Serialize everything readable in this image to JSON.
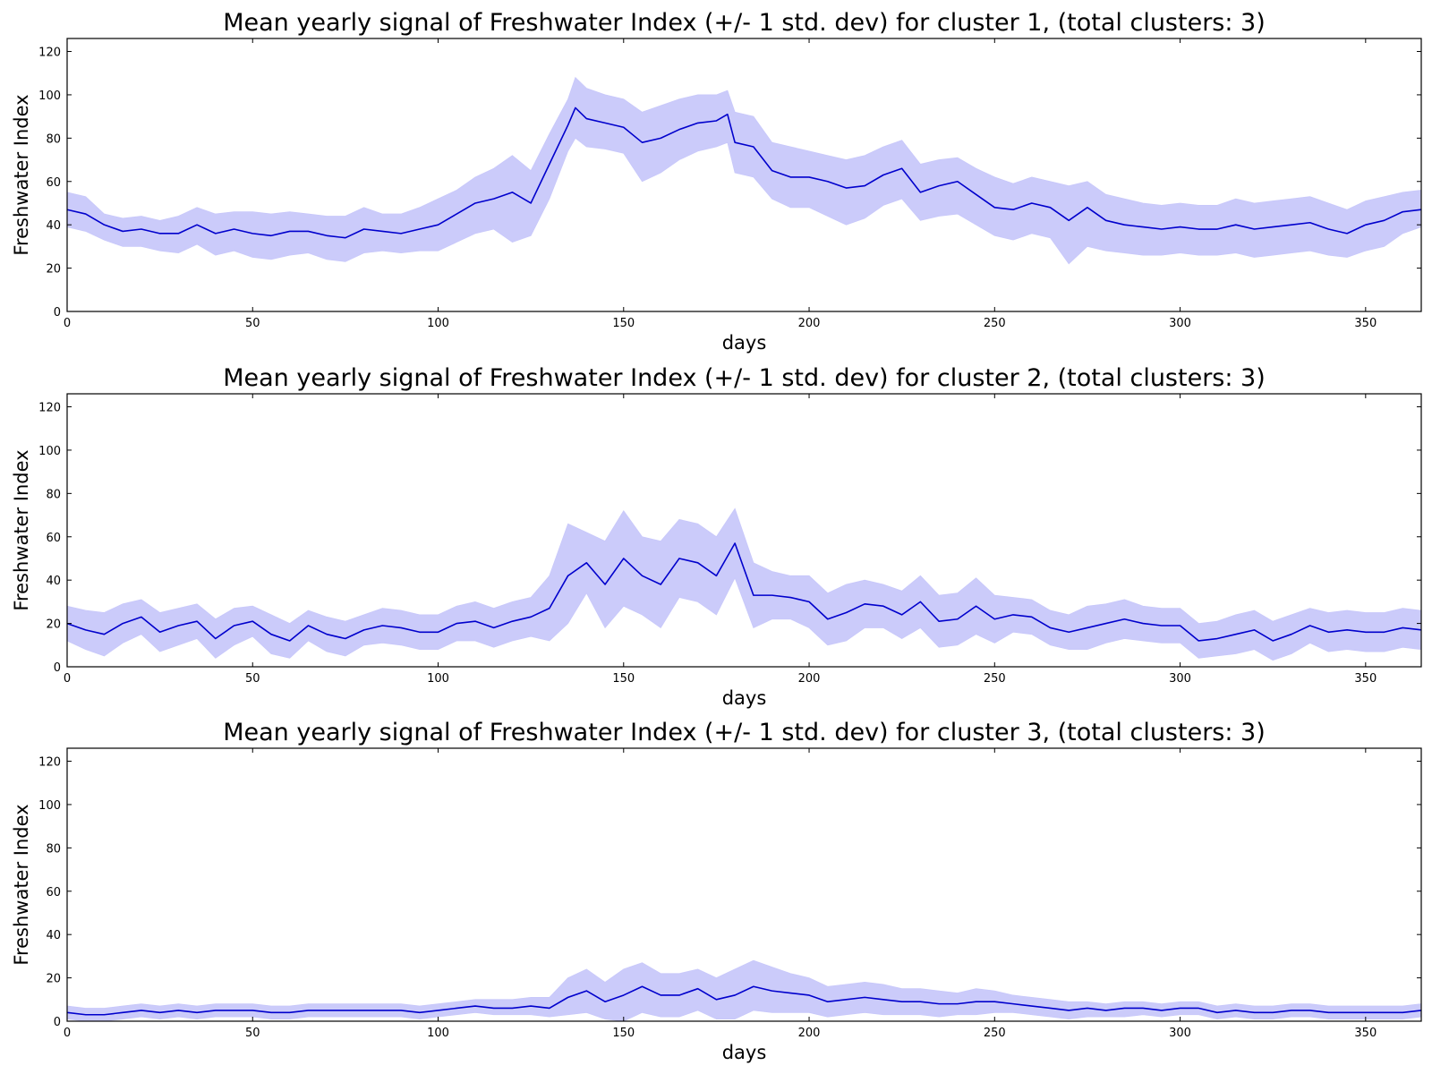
{
  "chart_data": [
    {
      "type": "line",
      "title": "Mean yearly signal of Freshwater Index (+/- 1 std. dev) for cluster 1, (total clusters: 3)",
      "xlabel": "days",
      "ylabel": "Freshwater Index",
      "xlim": [
        0,
        365
      ],
      "ylim": [
        0,
        126
      ],
      "xticks": [
        0,
        50,
        100,
        150,
        200,
        250,
        300,
        350
      ],
      "yticks": [
        0,
        20,
        40,
        60,
        80,
        100,
        120
      ],
      "grid": false,
      "colors": {
        "line": "#0000cc",
        "band": "#c8c8fa"
      },
      "x": [
        0,
        5,
        10,
        15,
        20,
        25,
        30,
        35,
        40,
        45,
        50,
        55,
        60,
        65,
        70,
        75,
        80,
        85,
        90,
        95,
        100,
        105,
        110,
        115,
        120,
        125,
        130,
        135,
        137,
        140,
        145,
        150,
        155,
        160,
        165,
        170,
        175,
        178,
        180,
        185,
        190,
        195,
        200,
        205,
        210,
        215,
        220,
        225,
        230,
        235,
        240,
        245,
        250,
        255,
        260,
        265,
        270,
        275,
        280,
        285,
        290,
        295,
        300,
        305,
        310,
        315,
        320,
        325,
        330,
        335,
        340,
        345,
        350,
        355,
        360,
        365
      ],
      "series": [
        {
          "mean": [
            47,
            45,
            40,
            37,
            38,
            36,
            36,
            40,
            36,
            38,
            36,
            35,
            37,
            37,
            35,
            34,
            38,
            37,
            36,
            38,
            40,
            45,
            50,
            52,
            55,
            50,
            68,
            86,
            94,
            89,
            87,
            85,
            78,
            80,
            84,
            87,
            88,
            91,
            78,
            76,
            65,
            62,
            62,
            60,
            57,
            58,
            63,
            66,
            55,
            58,
            60,
            54,
            48,
            47,
            50,
            48,
            42,
            48,
            42,
            40,
            39,
            38,
            39,
            38,
            38,
            40,
            38,
            39,
            40,
            41,
            38,
            36,
            40,
            42,
            46,
            47
          ],
          "upper": [
            55,
            53,
            45,
            43,
            44,
            42,
            44,
            48,
            45,
            46,
            46,
            45,
            46,
            45,
            44,
            44,
            48,
            45,
            45,
            48,
            52,
            56,
            62,
            66,
            72,
            65,
            82,
            98,
            108,
            103,
            100,
            98,
            92,
            95,
            98,
            100,
            100,
            102,
            92,
            90,
            78,
            76,
            74,
            72,
            70,
            72,
            76,
            79,
            68,
            70,
            71,
            66,
            62,
            59,
            62,
            60,
            58,
            60,
            54,
            52,
            50,
            49,
            50,
            49,
            49,
            52,
            50,
            51,
            52,
            53,
            50,
            47,
            51,
            53,
            55,
            56
          ],
          "lower": [
            39,
            37,
            33,
            30,
            30,
            28,
            27,
            31,
            26,
            28,
            25,
            24,
            26,
            27,
            24,
            23,
            27,
            28,
            27,
            28,
            28,
            32,
            36,
            38,
            32,
            35,
            52,
            74,
            80,
            76,
            75,
            73,
            60,
            64,
            70,
            74,
            76,
            78,
            64,
            62,
            52,
            48,
            48,
            44,
            40,
            43,
            49,
            52,
            42,
            44,
            45,
            40,
            35,
            33,
            36,
            34,
            22,
            30,
            28,
            27,
            26,
            26,
            27,
            26,
            26,
            27,
            25,
            26,
            27,
            28,
            26,
            25,
            28,
            30,
            36,
            39
          ]
        }
      ]
    },
    {
      "type": "line",
      "title": "Mean yearly signal of Freshwater Index (+/- 1 std. dev) for cluster 2, (total clusters: 3)",
      "xlabel": "days",
      "ylabel": "Freshwater Index",
      "xlim": [
        0,
        365
      ],
      "ylim": [
        0,
        126
      ],
      "xticks": [
        0,
        50,
        100,
        150,
        200,
        250,
        300,
        350
      ],
      "yticks": [
        0,
        20,
        40,
        60,
        80,
        100,
        120
      ],
      "grid": false,
      "colors": {
        "line": "#0000cc",
        "band": "#c8c8fa"
      },
      "x": [
        0,
        5,
        10,
        15,
        20,
        25,
        30,
        35,
        40,
        45,
        50,
        55,
        60,
        65,
        70,
        75,
        80,
        85,
        90,
        95,
        100,
        105,
        110,
        115,
        120,
        125,
        130,
        135,
        140,
        145,
        150,
        155,
        160,
        165,
        170,
        175,
        180,
        185,
        190,
        195,
        200,
        205,
        210,
        215,
        220,
        225,
        230,
        235,
        240,
        245,
        250,
        255,
        260,
        265,
        270,
        275,
        280,
        285,
        290,
        295,
        300,
        305,
        310,
        315,
        320,
        325,
        330,
        335,
        340,
        345,
        350,
        355,
        360,
        365
      ],
      "series": [
        {
          "mean": [
            20,
            17,
            15,
            20,
            23,
            16,
            19,
            21,
            13,
            19,
            21,
            15,
            12,
            19,
            15,
            13,
            17,
            19,
            18,
            16,
            16,
            20,
            21,
            18,
            21,
            23,
            27,
            42,
            48,
            38,
            50,
            42,
            38,
            50,
            48,
            42,
            57,
            33,
            33,
            32,
            30,
            22,
            25,
            29,
            28,
            24,
            30,
            21,
            22,
            28,
            22,
            24,
            23,
            18,
            16,
            18,
            20,
            22,
            20,
            19,
            19,
            12,
            13,
            15,
            17,
            12,
            15,
            19,
            16,
            17,
            16,
            16,
            18,
            17
          ],
          "upper": [
            28,
            26,
            25,
            29,
            31,
            25,
            27,
            29,
            22,
            27,
            28,
            24,
            20,
            26,
            23,
            21,
            24,
            27,
            26,
            24,
            24,
            28,
            30,
            27,
            30,
            32,
            42,
            66,
            62,
            58,
            72,
            60,
            58,
            68,
            66,
            60,
            73,
            48,
            44,
            42,
            42,
            34,
            38,
            40,
            38,
            35,
            42,
            33,
            34,
            41,
            33,
            32,
            31,
            26,
            24,
            28,
            29,
            31,
            28,
            27,
            27,
            20,
            21,
            24,
            26,
            21,
            24,
            27,
            25,
            26,
            25,
            25,
            27,
            26
          ],
          "lower": [
            12,
            8,
            5,
            11,
            15,
            7,
            10,
            13,
            4,
            10,
            14,
            6,
            4,
            12,
            7,
            5,
            10,
            11,
            10,
            8,
            8,
            12,
            12,
            9,
            12,
            14,
            12,
            20,
            34,
            18,
            28,
            24,
            18,
            32,
            30,
            24,
            41,
            18,
            22,
            22,
            18,
            10,
            12,
            18,
            18,
            13,
            18,
            9,
            10,
            15,
            11,
            16,
            15,
            10,
            8,
            8,
            11,
            13,
            12,
            11,
            11,
            4,
            5,
            6,
            8,
            3,
            6,
            11,
            7,
            8,
            7,
            7,
            9,
            8
          ]
        }
      ]
    },
    {
      "type": "line",
      "title": "Mean yearly signal of Freshwater Index (+/- 1 std. dev) for cluster 3, (total clusters: 3)",
      "xlabel": "days",
      "ylabel": "Freshwater Index",
      "xlim": [
        0,
        365
      ],
      "ylim": [
        0,
        126
      ],
      "xticks": [
        0,
        50,
        100,
        150,
        200,
        250,
        300,
        350
      ],
      "yticks": [
        0,
        20,
        40,
        60,
        80,
        100,
        120
      ],
      "grid": false,
      "colors": {
        "line": "#0000cc",
        "band": "#c8c8fa"
      },
      "x": [
        0,
        5,
        10,
        15,
        20,
        25,
        30,
        35,
        40,
        45,
        50,
        55,
        60,
        65,
        70,
        75,
        80,
        85,
        90,
        95,
        100,
        105,
        110,
        115,
        120,
        125,
        130,
        135,
        140,
        145,
        150,
        155,
        160,
        165,
        170,
        175,
        180,
        185,
        190,
        195,
        200,
        205,
        210,
        215,
        220,
        225,
        230,
        235,
        240,
        245,
        250,
        255,
        260,
        265,
        270,
        275,
        280,
        285,
        290,
        295,
        300,
        305,
        310,
        315,
        320,
        325,
        330,
        335,
        340,
        345,
        350,
        355,
        360,
        365
      ],
      "series": [
        {
          "mean": [
            4,
            3,
            3,
            4,
            5,
            4,
            5,
            4,
            5,
            5,
            5,
            4,
            4,
            5,
            5,
            5,
            5,
            5,
            5,
            4,
            5,
            6,
            7,
            6,
            6,
            7,
            6,
            11,
            14,
            9,
            12,
            16,
            12,
            12,
            15,
            10,
            12,
            16,
            14,
            13,
            12,
            9,
            10,
            11,
            10,
            9,
            9,
            8,
            8,
            9,
            9,
            8,
            7,
            6,
            5,
            6,
            5,
            6,
            6,
            5,
            6,
            6,
            4,
            5,
            4,
            4,
            5,
            5,
            4,
            4,
            4,
            4,
            4,
            5
          ],
          "upper": [
            7,
            6,
            6,
            7,
            8,
            7,
            8,
            7,
            8,
            8,
            8,
            7,
            7,
            8,
            8,
            8,
            8,
            8,
            8,
            7,
            8,
            9,
            10,
            10,
            10,
            11,
            11,
            20,
            24,
            18,
            24,
            27,
            22,
            22,
            24,
            20,
            24,
            28,
            25,
            22,
            20,
            16,
            17,
            18,
            17,
            15,
            15,
            14,
            13,
            15,
            14,
            12,
            11,
            10,
            9,
            9,
            8,
            9,
            9,
            8,
            9,
            9,
            7,
            8,
            7,
            7,
            8,
            8,
            7,
            7,
            7,
            7,
            7,
            8
          ],
          "lower": [
            1,
            0,
            0,
            1,
            2,
            1,
            2,
            1,
            2,
            2,
            2,
            1,
            1,
            2,
            2,
            2,
            2,
            2,
            2,
            1,
            2,
            3,
            4,
            3,
            3,
            3,
            2,
            3,
            4,
            1,
            0,
            4,
            2,
            2,
            5,
            1,
            1,
            5,
            4,
            4,
            4,
            2,
            3,
            4,
            3,
            3,
            3,
            2,
            3,
            3,
            4,
            4,
            3,
            2,
            1,
            2,
            2,
            2,
            3,
            2,
            3,
            3,
            1,
            2,
            1,
            1,
            2,
            2,
            1,
            1,
            1,
            1,
            1,
            2
          ]
        }
      ]
    }
  ]
}
